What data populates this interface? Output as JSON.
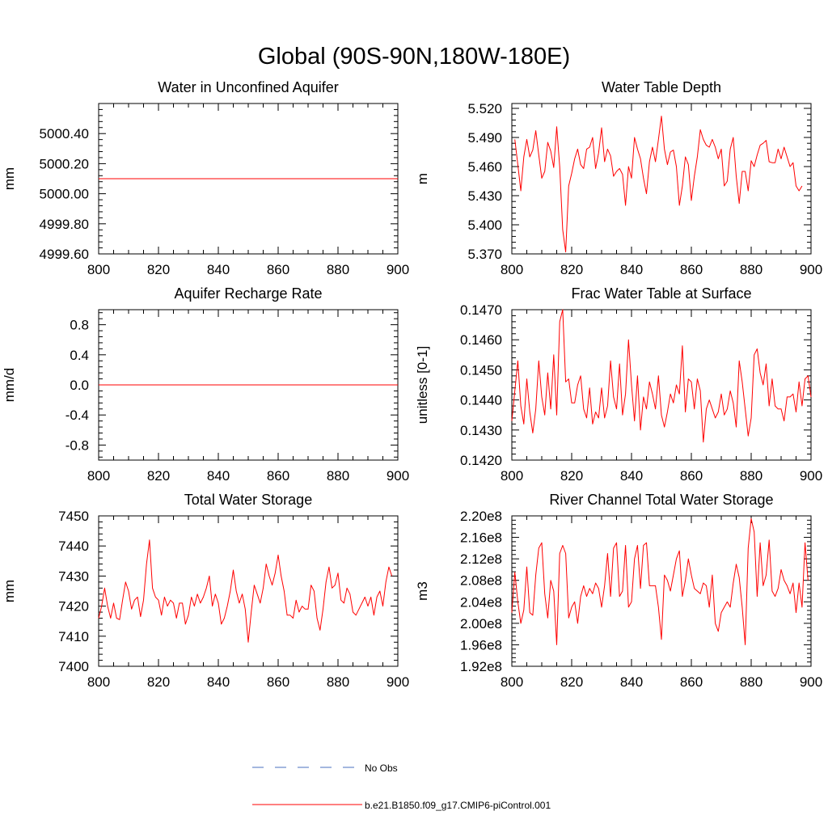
{
  "suptitle": "Global (90S-90N,180W-180E)",
  "legend": {
    "obs_label": "No Obs",
    "obs_color": "#4a6fbf",
    "model_label": "b.e21.B1850.f09_g17.CMIP6-piControl.001",
    "model_color": "#ff0000"
  },
  "chart_data": [
    {
      "type": "line",
      "title": "Water in Unconfined Aquifer",
      "ylabel": "mm",
      "xlim": [
        800,
        900
      ],
      "ylim": [
        4999.6,
        5000.6
      ],
      "xticks": [
        "800",
        "820",
        "840",
        "860",
        "880",
        "900"
      ],
      "yticks": [
        {
          "value": 4999.6,
          "label": "4999.60"
        },
        {
          "value": 4999.8,
          "label": "4999.80"
        },
        {
          "value": 5000.0,
          "label": "5000.00"
        },
        {
          "value": 5000.2,
          "label": "5000.20"
        },
        {
          "value": 5000.4,
          "label": "5000.40"
        }
      ],
      "x": [
        800,
        900
      ],
      "y": [
        5000.1,
        5000.1
      ]
    },
    {
      "type": "line",
      "title": "Water Table Depth",
      "ylabel": "m",
      "xlim": [
        800,
        900
      ],
      "ylim": [
        5.37,
        5.525
      ],
      "xticks": [
        "800",
        "820",
        "840",
        "860",
        "880",
        "900"
      ],
      "yticks": [
        {
          "value": 5.37,
          "label": "5.370"
        },
        {
          "value": 5.4,
          "label": "5.400"
        },
        {
          "value": 5.43,
          "label": "5.430"
        },
        {
          "value": 5.46,
          "label": "5.460"
        },
        {
          "value": 5.49,
          "label": "5.490"
        },
        {
          "value": 5.52,
          "label": "5.520"
        }
      ],
      "x_start": 801,
      "y": [
        5.488,
        5.462,
        5.435,
        5.47,
        5.488,
        5.47,
        5.477,
        5.497,
        5.472,
        5.448,
        5.455,
        5.485,
        5.476,
        5.459,
        5.501,
        5.46,
        5.395,
        5.372,
        5.44,
        5.453,
        5.468,
        5.478,
        5.462,
        5.458,
        5.478,
        5.48,
        5.49,
        5.458,
        5.474,
        5.5,
        5.465,
        5.478,
        5.471,
        5.45,
        5.455,
        5.458,
        5.452,
        5.42,
        5.46,
        5.448,
        5.49,
        5.478,
        5.468,
        5.448,
        5.432,
        5.465,
        5.48,
        5.465,
        5.488,
        5.512,
        5.478,
        5.462,
        5.475,
        5.477,
        5.46,
        5.42,
        5.44,
        5.47,
        5.462,
        5.425,
        5.45,
        5.47,
        5.498,
        5.488,
        5.482,
        5.48,
        5.488,
        5.48,
        5.468,
        5.478,
        5.44,
        5.445,
        5.478,
        5.49,
        5.45,
        5.422,
        5.455,
        5.455,
        5.435,
        5.466,
        5.46,
        5.472,
        5.482,
        5.484,
        5.487,
        5.465,
        5.464,
        5.464,
        5.478,
        5.468,
        5.48,
        5.47,
        5.46,
        5.464,
        5.44,
        5.435,
        5.44
      ]
    },
    {
      "type": "line",
      "title": "Aquifer Recharge Rate",
      "ylabel": "mm/d",
      "xlim": [
        800,
        900
      ],
      "ylim": [
        -1.0,
        1.0
      ],
      "xticks": [
        "800",
        "820",
        "840",
        "860",
        "880",
        "900"
      ],
      "yticks": [
        {
          "value": -0.8,
          "label": "-0.8"
        },
        {
          "value": -0.4,
          "label": "-0.4"
        },
        {
          "value": 0.0,
          "label": "0.0"
        },
        {
          "value": 0.4,
          "label": "0.4"
        },
        {
          "value": 0.8,
          "label": "0.8"
        }
      ],
      "x": [
        800,
        900
      ],
      "y": [
        0.0,
        0.0
      ]
    },
    {
      "type": "line",
      "title": "Frac Water Table at Surface",
      "ylabel": "unitless [0-1]",
      "xlim": [
        800,
        900
      ],
      "ylim": [
        0.142,
        0.147
      ],
      "xticks": [
        "800",
        "820",
        "840",
        "860",
        "880",
        "900"
      ],
      "yticks": [
        {
          "value": 0.142,
          "label": "0.1420"
        },
        {
          "value": 0.143,
          "label": "0.1430"
        },
        {
          "value": 0.144,
          "label": "0.1440"
        },
        {
          "value": 0.145,
          "label": "0.1450"
        },
        {
          "value": 0.146,
          "label": "0.1460"
        },
        {
          "value": 0.147,
          "label": "0.1470"
        }
      ],
      "x_start": 800,
      "y": [
        0.1433,
        0.1443,
        0.1453,
        0.1438,
        0.1432,
        0.1447,
        0.1436,
        0.1429,
        0.1437,
        0.1453,
        0.1441,
        0.1435,
        0.1449,
        0.1437,
        0.1455,
        0.1435,
        0.1466,
        0.147,
        0.1446,
        0.1447,
        0.1439,
        0.1439,
        0.1445,
        0.1448,
        0.1437,
        0.1434,
        0.1444,
        0.1432,
        0.1436,
        0.1434,
        0.1444,
        0.1434,
        0.1438,
        0.1453,
        0.1441,
        0.1437,
        0.1452,
        0.1435,
        0.1442,
        0.146,
        0.1445,
        0.1433,
        0.1448,
        0.143,
        0.1441,
        0.1437,
        0.1446,
        0.1442,
        0.1437,
        0.1448,
        0.1435,
        0.1431,
        0.1436,
        0.1442,
        0.1439,
        0.1445,
        0.1442,
        0.1458,
        0.1436,
        0.1447,
        0.1446,
        0.1437,
        0.1447,
        0.1443,
        0.1426,
        0.1437,
        0.144,
        0.1437,
        0.1434,
        0.1436,
        0.1442,
        0.1435,
        0.1437,
        0.1443,
        0.1439,
        0.1431,
        0.1453,
        0.1446,
        0.1437,
        0.1428,
        0.1434,
        0.1455,
        0.1457,
        0.1449,
        0.1445,
        0.1452,
        0.1438,
        0.1447,
        0.1438,
        0.1437,
        0.1437,
        0.1433,
        0.1441,
        0.1441,
        0.1442,
        0.1436,
        0.1446,
        0.1438,
        0.1447,
        0.1448,
        0.1441
      ]
    },
    {
      "type": "line",
      "title": "Total Water Storage",
      "ylabel": "mm",
      "xlim": [
        800,
        900
      ],
      "ylim": [
        7400,
        7450
      ],
      "xticks": [
        "800",
        "820",
        "840",
        "860",
        "880",
        "900"
      ],
      "yticks": [
        {
          "value": 7400,
          "label": "7400"
        },
        {
          "value": 7410,
          "label": "7410"
        },
        {
          "value": 7420,
          "label": "7420"
        },
        {
          "value": 7430,
          "label": "7430"
        },
        {
          "value": 7440,
          "label": "7440"
        },
        {
          "value": 7450,
          "label": "7450"
        }
      ],
      "x_start": 800,
      "y": [
        7416,
        7420,
        7426,
        7420,
        7416,
        7421,
        7416,
        7415.5,
        7422,
        7428,
        7425,
        7419,
        7422,
        7423,
        7416.5,
        7422,
        7434,
        7442,
        7426,
        7423,
        7422,
        7417,
        7423,
        7420,
        7422,
        7421,
        7416,
        7421,
        7421,
        7414,
        7417,
        7423,
        7420,
        7424,
        7421,
        7423,
        7426,
        7430,
        7420,
        7424,
        7421,
        7414,
        7416,
        7420,
        7425,
        7432,
        7425,
        7421,
        7424,
        7419,
        7408,
        7418,
        7427,
        7424,
        7421,
        7426,
        7434,
        7430,
        7427,
        7431,
        7437,
        7430,
        7425,
        7417,
        7417,
        7416,
        7422,
        7418,
        7420,
        7419,
        7419,
        7427,
        7425,
        7416,
        7412,
        7419,
        7428,
        7433,
        7426,
        7427,
        7431,
        7422,
        7421,
        7426,
        7424,
        7418,
        7417,
        7419,
        7421,
        7423,
        7420,
        7423,
        7417,
        7423,
        7425,
        7420,
        7428,
        7433,
        7430
      ]
    },
    {
      "type": "line",
      "title": "River Channel Total Water Storage",
      "ylabel": "m3",
      "xlim": [
        800,
        900
      ],
      "ylim": [
        192000000.0,
        220000000.0
      ],
      "xticks": [
        "800",
        "820",
        "840",
        "860",
        "880",
        "900"
      ],
      "yticks": [
        {
          "value": 192000000.0,
          "label": "1.92e8"
        },
        {
          "value": 196000000.0,
          "label": "1.96e8"
        },
        {
          "value": 200000000.0,
          "label": "2.00e8"
        },
        {
          "value": 204000000.0,
          "label": "2.04e8"
        },
        {
          "value": 208000000.0,
          "label": "2.08e8"
        },
        {
          "value": 212000000.0,
          "label": "2.12e8"
        },
        {
          "value": 216000000.0,
          "label": "2.16e8"
        },
        {
          "value": 220000000.0,
          "label": "2.20e8"
        }
      ],
      "x_start": 800,
      "y": [
        202000000.0,
        209500000.0,
        204000000.0,
        200000000.0,
        202500000.0,
        210500000.0,
        202000000.0,
        201500000.0,
        209000000.0,
        214000000.0,
        215000000.0,
        205500000.0,
        201000000.0,
        208000000.0,
        206000000.0,
        196000000.0,
        213000000.0,
        214500000.0,
        213000000.0,
        201000000.0,
        203000000.0,
        204000000.0,
        200000000.0,
        205000000.0,
        207000000.0,
        205000000.0,
        206500000.0,
        205500000.0,
        207500000.0,
        206500000.0,
        203000000.0,
        207000000.0,
        213000000.0,
        205000000.0,
        214000000.0,
        215000000.0,
        205000000.0,
        206000000.0,
        214500000.0,
        203000000.0,
        204000000.0,
        212000000.0,
        214500000.0,
        206500000.0,
        214500000.0,
        215000000.0,
        207000000.0,
        207000000.0,
        207000000.0,
        203000000.0,
        197000000.0,
        209000000.0,
        208000000.0,
        206000000.0,
        209000000.0,
        212000000.0,
        213500000.0,
        205000000.0,
        208000000.0,
        212000000.0,
        209000000.0,
        206500000.0,
        206000000.0,
        205500000.0,
        207500000.0,
        207000000.0,
        203000000.0,
        209000000.0,
        200000000.0,
        198500000.0,
        202000000.0,
        203000000.0,
        204000000.0,
        203000000.0,
        207500000.0,
        211000000.0,
        208500000.0,
        203000000.0,
        196000000.0,
        214000000.0,
        219500000.0,
        217000000.0,
        205000000.0,
        215000000.0,
        207000000.0,
        209000000.0,
        215500000.0,
        206000000.0,
        205000000.0,
        206500000.0,
        210000000.0,
        208000000.0,
        207000000.0,
        205500000.0,
        207500000.0,
        202000000.0,
        207500000.0,
        203000000.0,
        215000000.0,
        208000000.0
      ]
    }
  ]
}
